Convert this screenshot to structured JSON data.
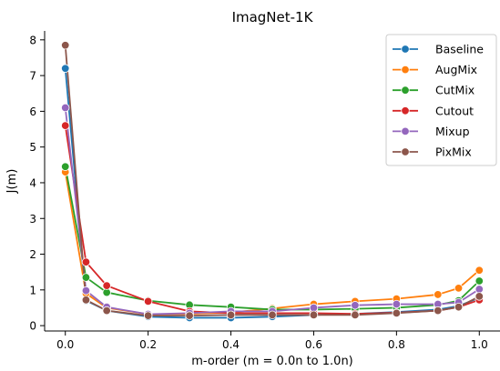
{
  "chart_data": {
    "type": "line",
    "title": "ImagNet-1K",
    "xlabel": "m-order (m = 0.0n to 1.0n)",
    "ylabel": "J(m)",
    "xlim": [
      -0.05,
      1.05
    ],
    "ylim": [
      -0.15,
      8.25
    ],
    "x_ticks": [
      0.0,
      0.2,
      0.4,
      0.6,
      0.8,
      1.0
    ],
    "x_tick_labels": [
      "0.0",
      "0.2",
      "0.4",
      "0.6",
      "0.8",
      "1.0"
    ],
    "y_ticks": [
      0,
      1,
      2,
      3,
      4,
      5,
      6,
      7,
      8
    ],
    "y_tick_labels": [
      "0",
      "1",
      "2",
      "3",
      "4",
      "5",
      "6",
      "7",
      "8"
    ],
    "grid": false,
    "legend_position": "top-right",
    "x": [
      0.0,
      0.05,
      0.1,
      0.2,
      0.3,
      0.4,
      0.5,
      0.6,
      0.7,
      0.8,
      0.9,
      0.95,
      1.0
    ],
    "series": [
      {
        "name": "Baseline",
        "color": "#1f77b4",
        "values": [
          7.2,
          0.7,
          0.42,
          0.25,
          0.22,
          0.22,
          0.25,
          0.3,
          0.33,
          0.38,
          0.45,
          0.55,
          0.78
        ]
      },
      {
        "name": "AugMix",
        "color": "#ff7f0e",
        "values": [
          4.3,
          0.9,
          0.5,
          0.32,
          0.33,
          0.37,
          0.48,
          0.6,
          0.68,
          0.75,
          0.87,
          1.05,
          1.55
        ]
      },
      {
        "name": "CutMix",
        "color": "#2ca02c",
        "values": [
          4.45,
          1.35,
          0.93,
          0.7,
          0.58,
          0.52,
          0.45,
          0.45,
          0.47,
          0.5,
          0.58,
          0.7,
          1.25
        ]
      },
      {
        "name": "Cutout",
        "color": "#d62728",
        "values": [
          5.6,
          1.78,
          1.12,
          0.68,
          0.4,
          0.35,
          0.35,
          0.35,
          0.33,
          0.36,
          0.42,
          0.52,
          0.72
        ]
      },
      {
        "name": "Mixup",
        "color": "#9467bd",
        "values": [
          6.1,
          0.98,
          0.52,
          0.32,
          0.35,
          0.4,
          0.4,
          0.5,
          0.57,
          0.6,
          0.6,
          0.65,
          1.02
        ]
      },
      {
        "name": "PixMix",
        "color": "#8c564b",
        "values": [
          7.85,
          0.72,
          0.42,
          0.28,
          0.28,
          0.3,
          0.3,
          0.3,
          0.3,
          0.35,
          0.42,
          0.52,
          0.82
        ]
      }
    ]
  }
}
